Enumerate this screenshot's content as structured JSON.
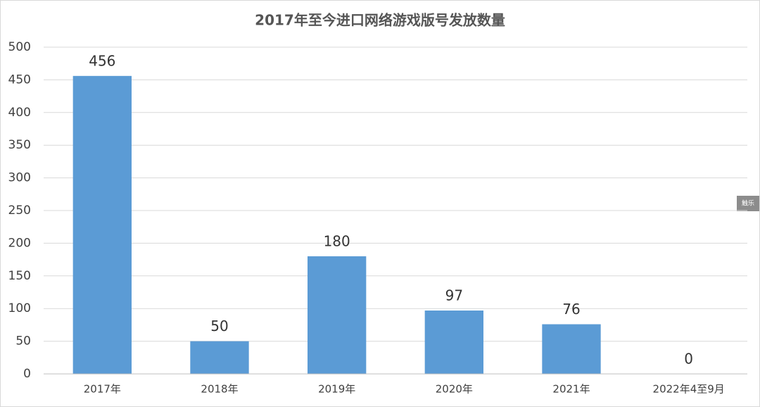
{
  "chart_data": {
    "type": "bar",
    "title": "2017年至今进口网络游戏版号发放数量",
    "categories": [
      "2017年",
      "2018年",
      "2019年",
      "2020年",
      "2021年",
      "2022年4至9月"
    ],
    "values": [
      456,
      50,
      180,
      97,
      76,
      0
    ],
    "color": "#5b9bd5",
    "ylim": [
      0,
      500
    ],
    "yticks": [
      0,
      50,
      100,
      150,
      200,
      250,
      300,
      350,
      400,
      450,
      500
    ],
    "grid": true,
    "watermark": "触乐"
  }
}
